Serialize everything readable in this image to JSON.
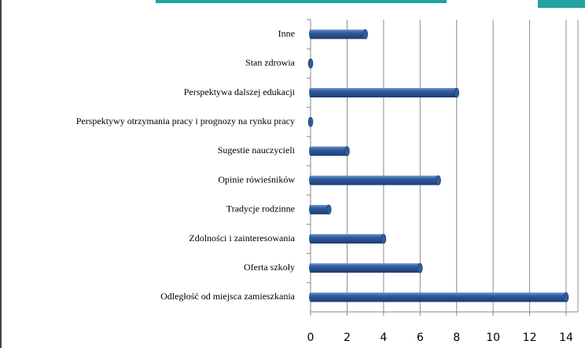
{
  "chart_data": {
    "type": "bar",
    "orientation": "horizontal",
    "categories": [
      "Inne",
      "Stan zdrowia",
      "Perspektywa dalszej edukacji",
      "Perspektywy otrzymania pracy i prognozy na rynku pracy",
      "Sugestie nauczycieli",
      "Opinie rówieśników",
      "Tradycje rodzinne",
      "Zdolności i zainteresowania",
      "Oferta szkoły",
      "Odległość od miejsca zamieszkania"
    ],
    "values": [
      3,
      0,
      8,
      0,
      2,
      7,
      1,
      4,
      6,
      14
    ],
    "color": "#2f5b9f",
    "xlim": [
      0,
      14
    ],
    "xticks": [
      0,
      2,
      4,
      6,
      8,
      10,
      12,
      14
    ],
    "grid": true
  }
}
